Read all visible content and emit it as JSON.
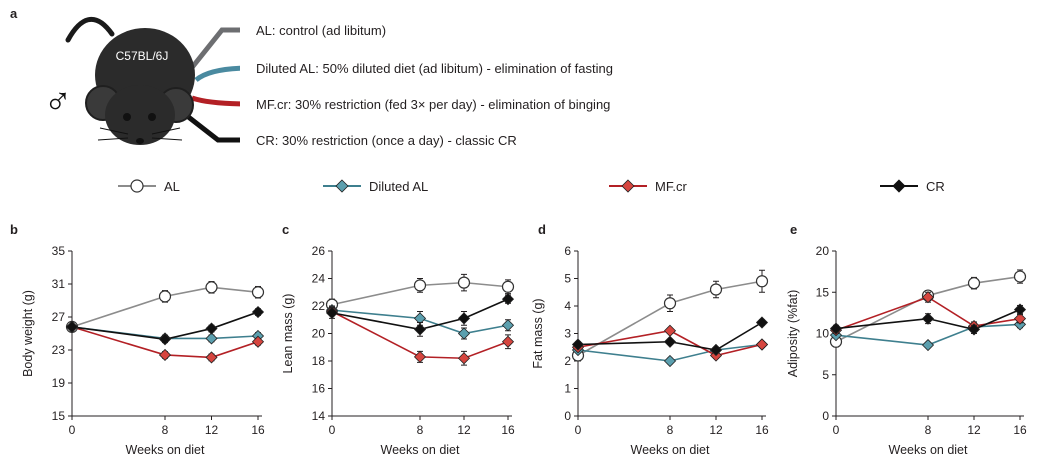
{
  "panel_a": {
    "letter": "a",
    "strain": "C57BL/6J",
    "sex_symbol": "♂",
    "groups": [
      {
        "text": "AL: control (ad libitum)",
        "color": "#6d6e71"
      },
      {
        "text": "Diluted AL: 50% diluted diet (ad libitum) - elimination of fasting",
        "color": "#4a8aa0"
      },
      {
        "text": "MF.cr: 30% restriction (fed 3× per day) - elimination of binging",
        "color": "#b32025"
      },
      {
        "text": "CR: 30% restriction (once a day) - classic CR",
        "color": "#111111"
      }
    ]
  },
  "legend": [
    {
      "label": "AL",
      "color": "#8c8c8c",
      "marker": "circle",
      "fill": "#ffffff"
    },
    {
      "label": "Diluted AL",
      "color": "#3e7f8e",
      "marker": "diamond",
      "fill": "#5b9fae"
    },
    {
      "label": "MF.cr",
      "color": "#b32025",
      "marker": "diamond",
      "fill": "#d6453f"
    },
    {
      "label": "CR",
      "color": "#111111",
      "marker": "diamond",
      "fill": "#111111"
    }
  ],
  "chart_data": [
    {
      "type": "line",
      "panel": "b",
      "xlabel": "Weeks on diet",
      "ylabel": "Body weight (g)",
      "x": [
        0,
        8,
        12,
        16
      ],
      "xticks": [
        0,
        8,
        12,
        16
      ],
      "ylim": [
        15,
        35
      ],
      "yticks": [
        15,
        19,
        23,
        27,
        31,
        35
      ],
      "series": [
        {
          "name": "AL",
          "values": [
            25.8,
            29.5,
            30.6,
            30.0
          ],
          "err": [
            0.3,
            0.7,
            0.7,
            0.7
          ]
        },
        {
          "name": "Diluted AL",
          "values": [
            25.8,
            24.4,
            24.4,
            24.7
          ],
          "err": [
            0.3,
            0.4,
            0.4,
            0.4
          ]
        },
        {
          "name": "MF.cr",
          "values": [
            25.8,
            22.4,
            22.1,
            24.0
          ],
          "err": [
            0.3,
            0.4,
            0.4,
            0.4
          ]
        },
        {
          "name": "CR",
          "values": [
            25.8,
            24.3,
            25.6,
            27.6
          ],
          "err": [
            0.3,
            0.4,
            0.4,
            0.4
          ]
        }
      ]
    },
    {
      "type": "line",
      "panel": "c",
      "xlabel": "Weeks on diet",
      "ylabel": "Lean mass (g)",
      "x": [
        0,
        8,
        12,
        16
      ],
      "xticks": [
        0,
        8,
        12,
        16
      ],
      "ylim": [
        14,
        26
      ],
      "yticks": [
        14,
        16,
        18,
        20,
        22,
        24,
        26
      ],
      "series": [
        {
          "name": "AL",
          "values": [
            22.1,
            23.5,
            23.7,
            23.4
          ],
          "err": [
            0.4,
            0.5,
            0.6,
            0.5
          ]
        },
        {
          "name": "Diluted AL",
          "values": [
            21.7,
            21.1,
            20.0,
            20.6
          ],
          "err": [
            0.3,
            0.5,
            0.4,
            0.4
          ]
        },
        {
          "name": "MF.cr",
          "values": [
            21.6,
            18.3,
            18.2,
            19.4
          ],
          "err": [
            0.3,
            0.4,
            0.5,
            0.5
          ]
        },
        {
          "name": "CR",
          "values": [
            21.5,
            20.3,
            21.1,
            22.5
          ],
          "err": [
            0.4,
            0.5,
            0.5,
            0.3
          ]
        }
      ]
    },
    {
      "type": "line",
      "panel": "d",
      "xlabel": "Weeks on diet",
      "ylabel": "Fat mass (g)",
      "x": [
        0,
        8,
        12,
        16
      ],
      "xticks": [
        0,
        8,
        12,
        16
      ],
      "ylim": [
        0,
        6
      ],
      "yticks": [
        0,
        1,
        2,
        3,
        4,
        5,
        6
      ],
      "series": [
        {
          "name": "AL",
          "values": [
            2.2,
            4.1,
            4.6,
            4.9
          ],
          "err": [
            0.2,
            0.3,
            0.3,
            0.4
          ]
        },
        {
          "name": "Diluted AL",
          "values": [
            2.4,
            2.0,
            2.4,
            2.6
          ],
          "err": [
            0.1,
            0.1,
            0.1,
            0.1
          ]
        },
        {
          "name": "MF.cr",
          "values": [
            2.5,
            3.1,
            2.2,
            2.6
          ],
          "err": [
            0.1,
            0.1,
            0.1,
            0.1
          ]
        },
        {
          "name": "CR",
          "values": [
            2.6,
            2.7,
            2.4,
            3.4
          ],
          "err": [
            0.1,
            0.1,
            0.1,
            0.1
          ]
        }
      ]
    },
    {
      "type": "line",
      "panel": "e",
      "xlabel": "Weeks on diet",
      "ylabel": "Adiposity (%fat)",
      "x": [
        0,
        8,
        12,
        16
      ],
      "xticks": [
        0,
        8,
        12,
        16
      ],
      "ylim": [
        0,
        20
      ],
      "yticks": [
        0,
        5,
        10,
        15,
        20
      ],
      "series": [
        {
          "name": "AL",
          "values": [
            9.0,
            14.6,
            16.1,
            16.9
          ],
          "err": [
            0.6,
            0.6,
            0.7,
            0.8
          ]
        },
        {
          "name": "Diluted AL",
          "values": [
            9.8,
            8.6,
            10.8,
            11.1
          ],
          "err": [
            0.3,
            0.3,
            0.4,
            0.4
          ]
        },
        {
          "name": "MF.cr",
          "values": [
            10.4,
            14.4,
            10.9,
            11.8
          ],
          "err": [
            0.4,
            0.6,
            0.5,
            0.5
          ]
        },
        {
          "name": "CR",
          "values": [
            10.6,
            11.8,
            10.5,
            12.9
          ],
          "err": [
            0.4,
            0.6,
            0.5,
            0.5
          ]
        }
      ]
    }
  ]
}
